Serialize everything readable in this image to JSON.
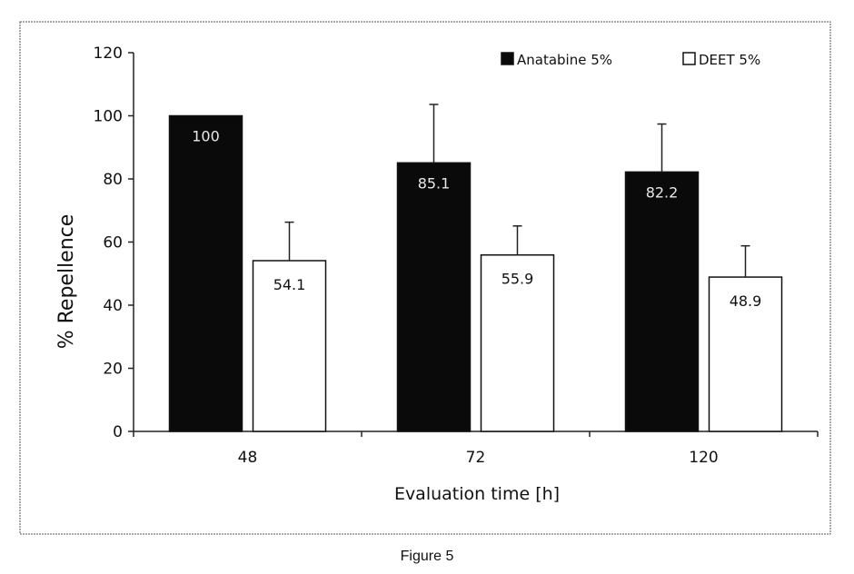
{
  "figure_caption": "Figure 5",
  "colors": {
    "frame": "#555555",
    "anatabine_fill": "#0a0a0a",
    "deet_fill": "#ffffff",
    "bar_stroke": "#111111",
    "axis": "#222222",
    "dark_label_text": "#e8e8e8",
    "light_label_text": "#111111"
  },
  "chart_data": {
    "type": "bar",
    "title": "",
    "xlabel": "Evaluation time [h]",
    "ylabel": "% Repellence",
    "ylim": [
      0,
      120
    ],
    "yticks": [
      0,
      20,
      40,
      60,
      80,
      100,
      120
    ],
    "categories": [
      "48",
      "72",
      "120"
    ],
    "grid": false,
    "legend_position": "top-right",
    "series": [
      {
        "name": "Anatabine 5%",
        "values": [
          100,
          85.1,
          82.2
        ],
        "labels": [
          "100",
          "85.1",
          "82.2"
        ],
        "error": [
          0,
          18.5,
          15.2
        ]
      },
      {
        "name": "DEET 5%",
        "values": [
          54.1,
          55.9,
          48.9
        ],
        "labels": [
          "54.1",
          "55.9",
          "48.9"
        ],
        "error": [
          12.2,
          9.2,
          9.9
        ]
      }
    ]
  }
}
